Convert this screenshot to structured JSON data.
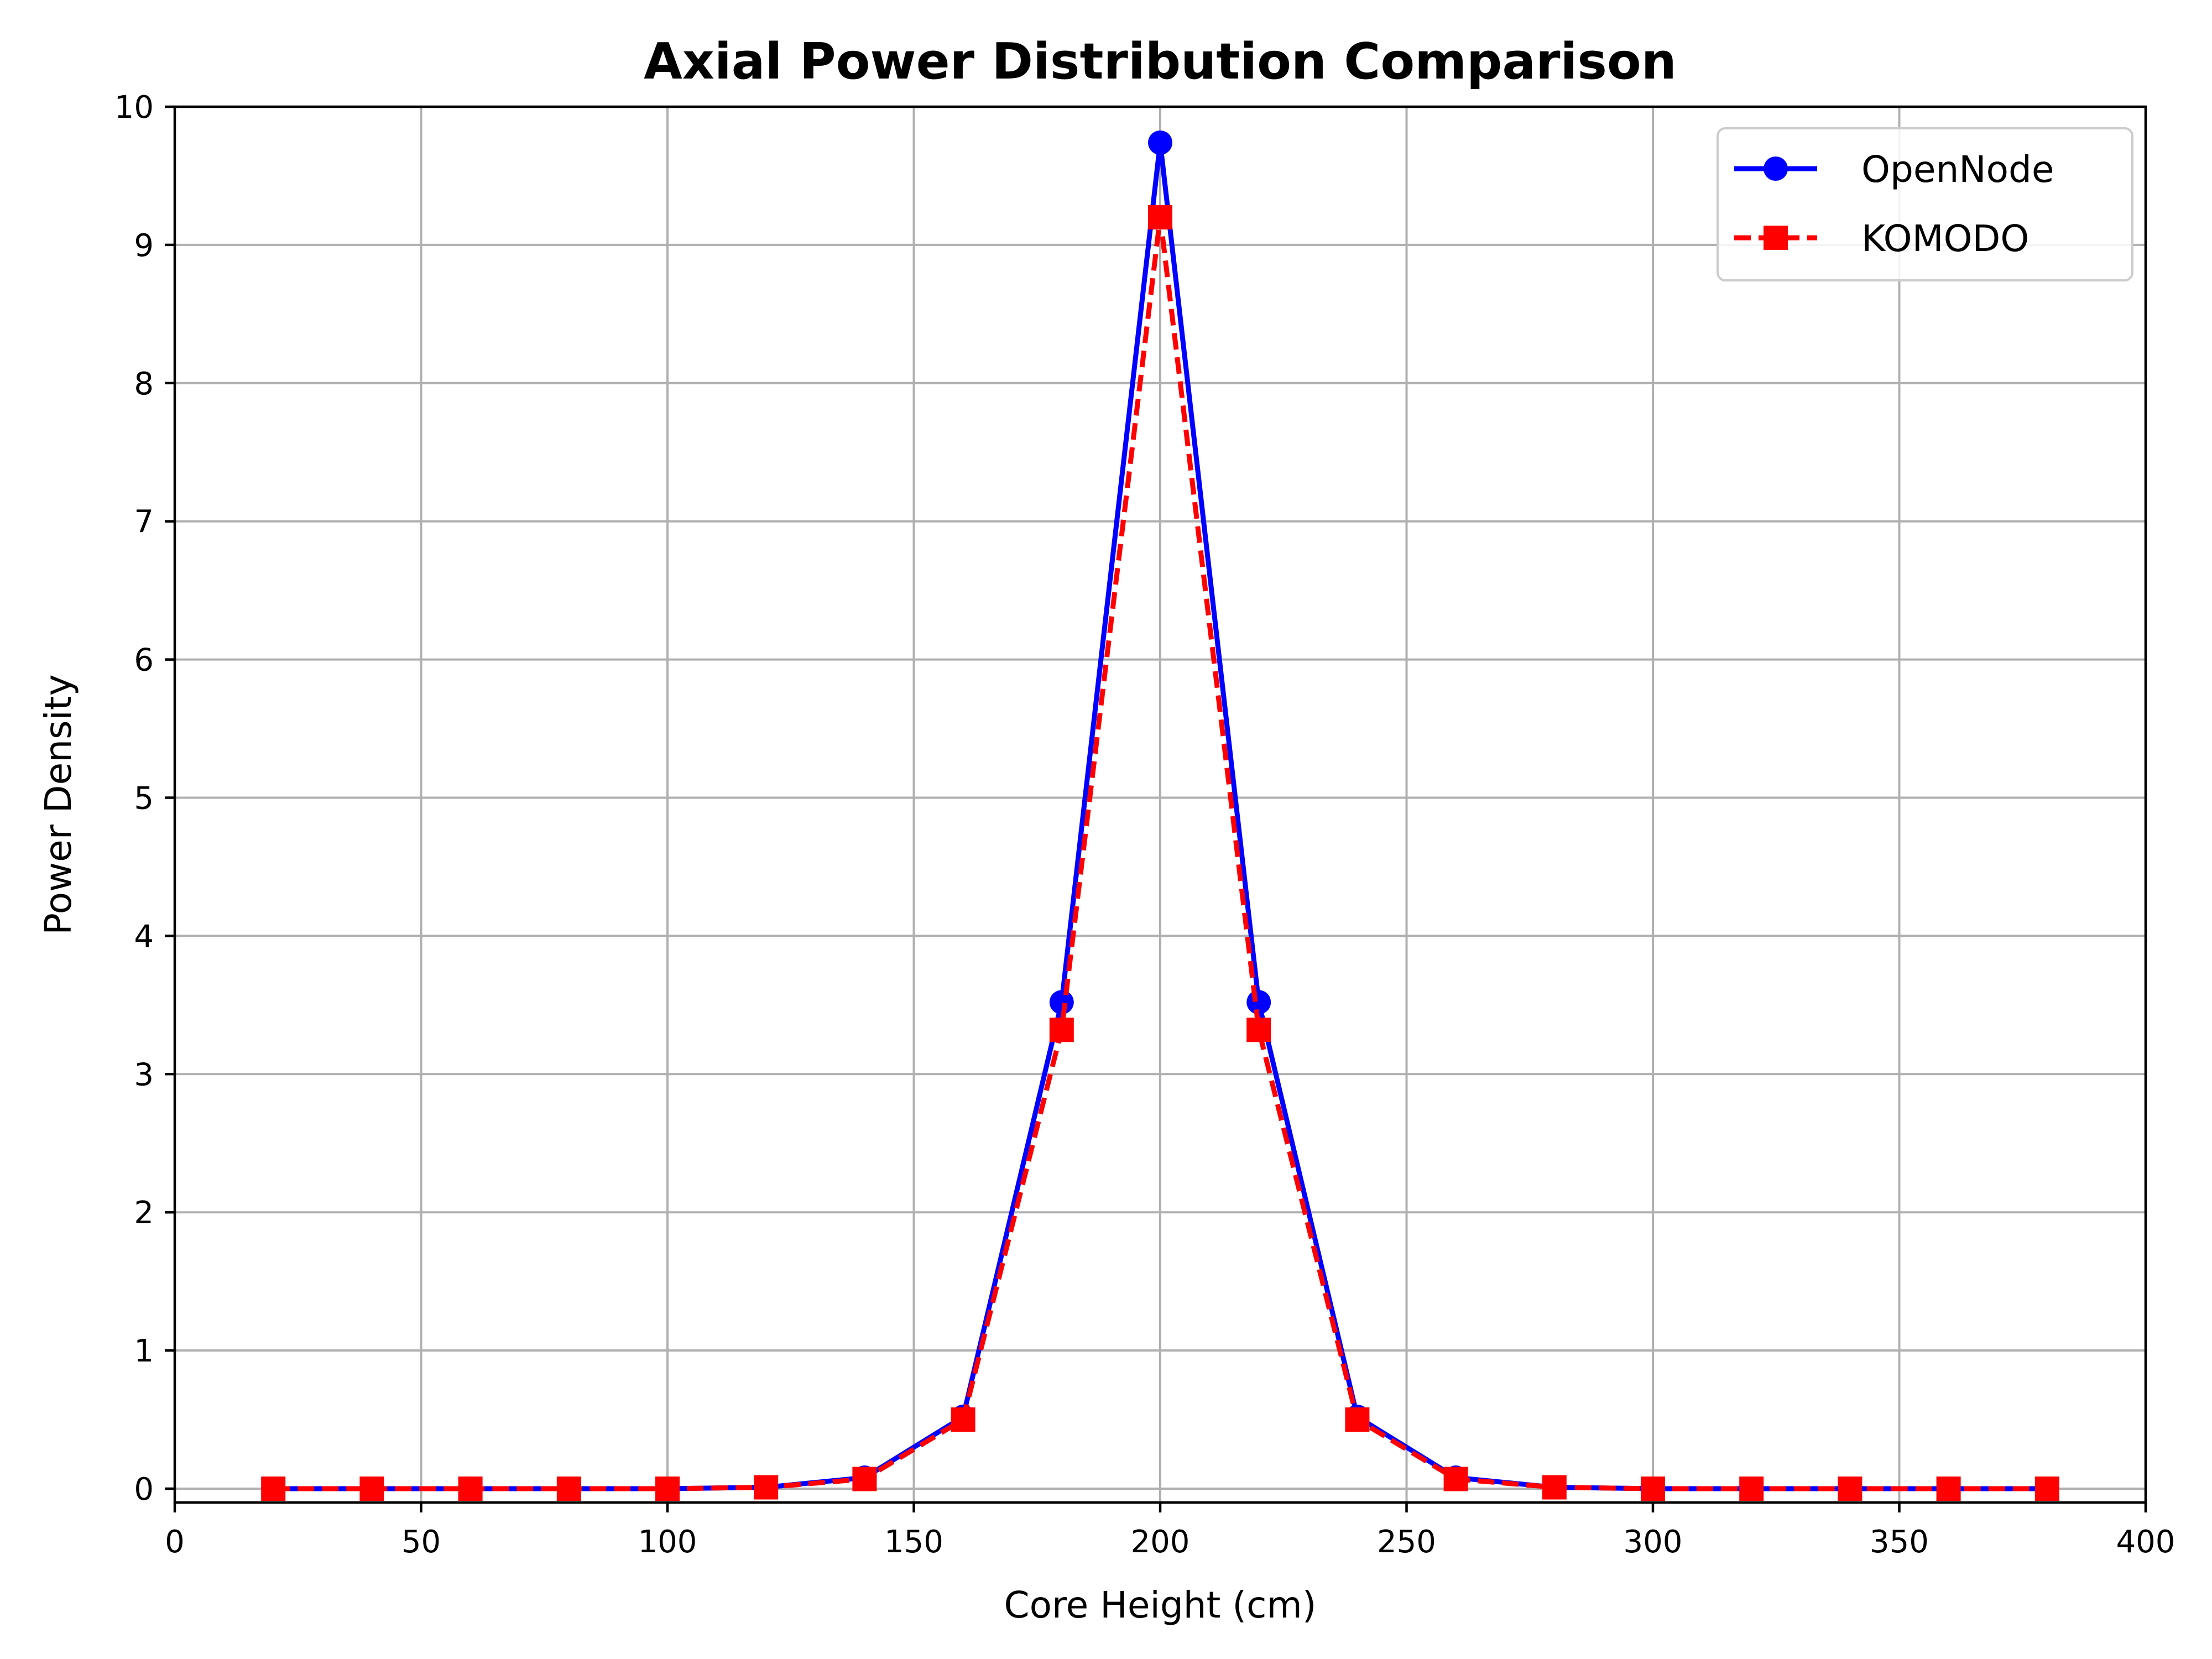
{
  "chart_data": {
    "type": "line",
    "title": "Axial Power Distribution Comparison",
    "xlabel": "Core Height (cm)",
    "ylabel": "Power Density",
    "xlim": [
      0,
      400
    ],
    "ylim": [
      -0.1,
      10
    ],
    "xticks": [
      0,
      50,
      100,
      150,
      200,
      250,
      300,
      350,
      400
    ],
    "yticks": [
      0,
      1,
      2,
      3,
      4,
      5,
      6,
      7,
      8,
      9,
      10
    ],
    "grid": true,
    "legend_position": "top-right",
    "x": [
      20,
      40,
      60,
      80,
      100,
      120,
      140,
      160,
      180,
      200,
      220,
      240,
      260,
      280,
      300,
      320,
      340,
      360,
      380
    ],
    "series": [
      {
        "name": "OpenNode",
        "color": "#0000ff",
        "line_style": "solid",
        "marker": "circle",
        "values": [
          0.0,
          0.0,
          0.0,
          0.0,
          0.0,
          0.01,
          0.08,
          0.52,
          3.52,
          9.74,
          3.52,
          0.52,
          0.08,
          0.01,
          0.0,
          0.0,
          0.0,
          0.0,
          0.0
        ]
      },
      {
        "name": "KOMODO",
        "color": "#ff0000",
        "line_style": "dashed",
        "marker": "square",
        "values": [
          0.0,
          0.0,
          0.0,
          0.0,
          0.0,
          0.01,
          0.07,
          0.5,
          3.32,
          9.2,
          3.32,
          0.5,
          0.07,
          0.01,
          0.0,
          0.0,
          0.0,
          0.0,
          0.0
        ]
      }
    ]
  }
}
